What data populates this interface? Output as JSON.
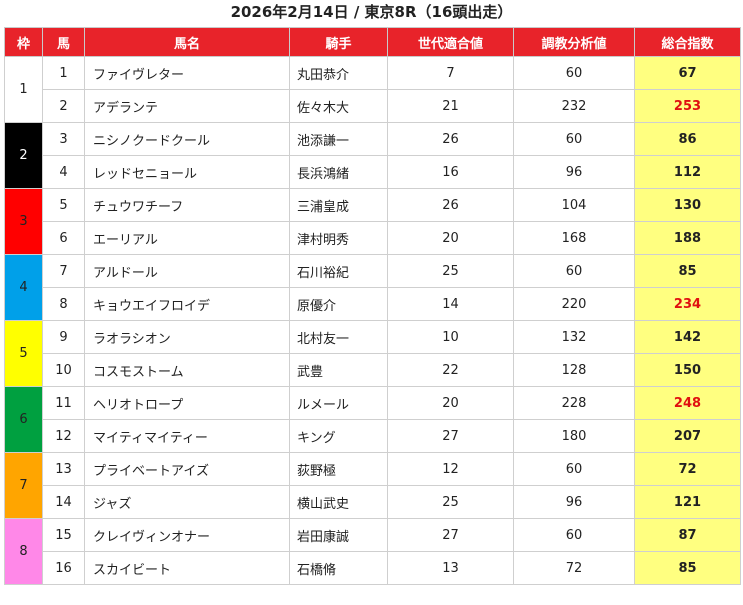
{
  "title": "2026年2月14日 / 東京8R（16頭出走）",
  "headers": [
    "枠",
    "馬",
    "馬名",
    "騎手",
    "世代適合値",
    "調教分析値",
    "総合指数"
  ],
  "waku": [
    {
      "label": "1",
      "bg": "#ffffff",
      "fg": "#222222"
    },
    {
      "label": "2",
      "bg": "#000000",
      "fg": "#ffffff"
    },
    {
      "label": "3",
      "bg": "#ff0000",
      "fg": "#222222"
    },
    {
      "label": "4",
      "bg": "#00a0e9",
      "fg": "#222222"
    },
    {
      "label": "5",
      "bg": "#ffff00",
      "fg": "#222222"
    },
    {
      "label": "6",
      "bg": "#00a040",
      "fg": "#222222"
    },
    {
      "label": "7",
      "bg": "#ffa500",
      "fg": "#222222"
    },
    {
      "label": "8",
      "bg": "#ff88e8",
      "fg": "#222222"
    }
  ],
  "rows": [
    {
      "num": "1",
      "name": "ファイヴレター",
      "jockey": "丸田恭介",
      "gen": "7",
      "train": "60",
      "score": "67",
      "hi": false
    },
    {
      "num": "2",
      "name": "アデランテ",
      "jockey": "佐々木大",
      "gen": "21",
      "train": "232",
      "score": "253",
      "hi": true
    },
    {
      "num": "3",
      "name": "ニシノクードクール",
      "jockey": "池添謙一",
      "gen": "26",
      "train": "60",
      "score": "86",
      "hi": false
    },
    {
      "num": "4",
      "name": "レッドセニョール",
      "jockey": "長浜鴻緒",
      "gen": "16",
      "train": "96",
      "score": "112",
      "hi": false
    },
    {
      "num": "5",
      "name": "チュウワチーフ",
      "jockey": "三浦皇成",
      "gen": "26",
      "train": "104",
      "score": "130",
      "hi": false
    },
    {
      "num": "6",
      "name": "エーリアル",
      "jockey": "津村明秀",
      "gen": "20",
      "train": "168",
      "score": "188",
      "hi": false
    },
    {
      "num": "7",
      "name": "アルドール",
      "jockey": "石川裕紀",
      "gen": "25",
      "train": "60",
      "score": "85",
      "hi": false
    },
    {
      "num": "8",
      "name": "キョウエイフロイデ",
      "jockey": "原優介",
      "gen": "14",
      "train": "220",
      "score": "234",
      "hi": true
    },
    {
      "num": "9",
      "name": "ラオラシオン",
      "jockey": "北村友一",
      "gen": "10",
      "train": "132",
      "score": "142",
      "hi": false
    },
    {
      "num": "10",
      "name": "コスモストーム",
      "jockey": "武豊",
      "gen": "22",
      "train": "128",
      "score": "150",
      "hi": false
    },
    {
      "num": "11",
      "name": "ヘリオトロープ",
      "jockey": "ルメール",
      "gen": "20",
      "train": "228",
      "score": "248",
      "hi": true
    },
    {
      "num": "12",
      "name": "マイティマイティー",
      "jockey": "キング",
      "gen": "27",
      "train": "180",
      "score": "207",
      "hi": false
    },
    {
      "num": "13",
      "name": "プライベートアイズ",
      "jockey": "荻野極",
      "gen": "12",
      "train": "60",
      "score": "72",
      "hi": false
    },
    {
      "num": "14",
      "name": "ジャズ",
      "jockey": "横山武史",
      "gen": "25",
      "train": "96",
      "score": "121",
      "hi": false
    },
    {
      "num": "15",
      "name": "クレイヴィンオナー",
      "jockey": "岩田康誠",
      "gen": "27",
      "train": "60",
      "score": "87",
      "hi": false
    },
    {
      "num": "16",
      "name": "スカイビート",
      "jockey": "石橋脩",
      "gen": "13",
      "train": "72",
      "score": "85",
      "hi": false
    }
  ]
}
